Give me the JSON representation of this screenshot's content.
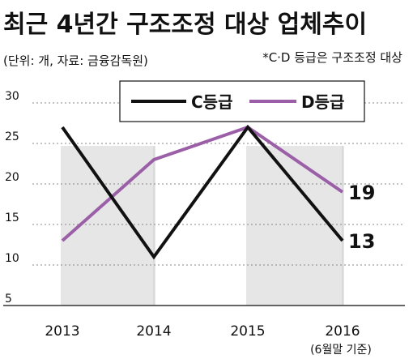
{
  "header": {
    "title": "최근 4년간 구조조정 대상 업체추이",
    "source": "(단위: 개, 자료: 금융감독원)",
    "note": "*C·D 등급은 구조조정 대상"
  },
  "chart_data": {
    "type": "line",
    "title": "최근 4년간 구조조정 대상 업체추이",
    "categories": [
      "2013",
      "2014",
      "2015",
      "2016"
    ],
    "x_sublabels": [
      "",
      "",
      "",
      "(6월말 기준)"
    ],
    "series": [
      {
        "name": "C등급",
        "values": [
          27,
          11,
          27,
          13
        ],
        "color": "#111111"
      },
      {
        "name": "D등급",
        "values": [
          13,
          23,
          27,
          19
        ],
        "color": "#9b5fa8"
      }
    ],
    "end_labels": [
      "13",
      "19"
    ],
    "yticks": [
      5,
      10,
      15,
      20,
      25,
      30
    ],
    "ylim": [
      5,
      30
    ],
    "grid": "horizontal dotted",
    "legend_position": "top-center",
    "colors": {
      "stripe": "#e6e6e6",
      "grid": "#888888",
      "c_grade": "#111111",
      "d_grade": "#9b5fa8"
    }
  }
}
